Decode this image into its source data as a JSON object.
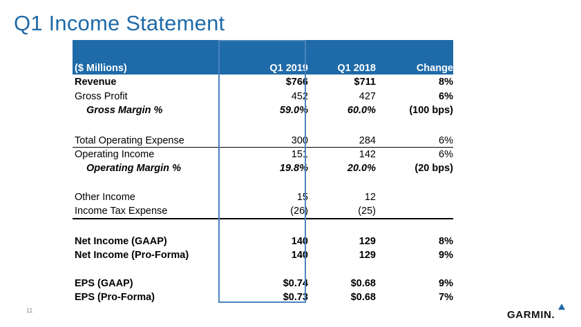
{
  "title": "Q1 Income Statement",
  "page_number": "11",
  "logo_text": "GARMIN.",
  "table": {
    "header": [
      "($ Millions)",
      "Q1 2019",
      "Q1 2018",
      "Change"
    ],
    "rows": [
      {
        "label": "Revenue",
        "q1_2019": "$766",
        "q1_2018": "$711",
        "change": "8%"
      },
      {
        "label": "Gross Profit",
        "q1_2019": "452",
        "q1_2018": "427",
        "change": "6%"
      },
      {
        "label": "Gross Margin %",
        "q1_2019": "59.0%",
        "q1_2018": "60.0%",
        "change": "(100 bps)"
      },
      {
        "label": "Total Operating Expense",
        "q1_2019": "300",
        "q1_2018": "284",
        "change": "6%"
      },
      {
        "label": "Operating Income",
        "q1_2019": "151",
        "q1_2018": "142",
        "change": "6%"
      },
      {
        "label": "Operating Margin %",
        "q1_2019": "19.8%",
        "q1_2018": "20.0%",
        "change": "(20 bps)"
      },
      {
        "label": "Other Income",
        "q1_2019": "15",
        "q1_2018": "12",
        "change": ""
      },
      {
        "label": "Income Tax Expense",
        "q1_2019": "(26)",
        "q1_2018": "(25)",
        "change": ""
      },
      {
        "label": "Net Income (GAAP)",
        "q1_2019": "140",
        "q1_2018": "129",
        "change": "8%"
      },
      {
        "label": "Net Income (Pro-Forma)",
        "q1_2019": "140",
        "q1_2018": "129",
        "change": "9%"
      },
      {
        "label": "EPS (GAAP)",
        "q1_2019": "$0.74",
        "q1_2018": "$0.68",
        "change": "9%"
      },
      {
        "label": "EPS (Pro-Forma)",
        "q1_2019": "$0.73",
        "q1_2018": "$0.68",
        "change": "7%"
      }
    ]
  },
  "colors": {
    "title": "#1f6aa8",
    "header_band": "#1f6aa8",
    "highlight_border": "#4a84bd"
  }
}
